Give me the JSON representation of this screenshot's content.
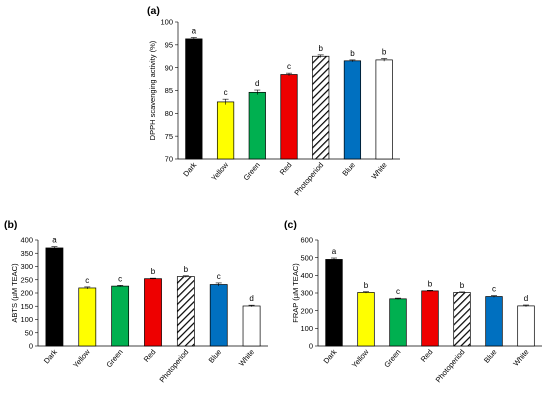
{
  "chart_data": [
    {
      "type": "bar",
      "panel_label": "(a)",
      "ylabel": "DPPH scavenging activity (%)",
      "ylim": [
        70,
        100
      ],
      "yticks": [
        70,
        75,
        80,
        85,
        90,
        95,
        100
      ],
      "categories": [
        "Dark",
        "Yellow",
        "Green",
        "Red",
        "Photoperiod",
        "Blue",
        "White"
      ],
      "values": [
        96.3,
        82.5,
        84.6,
        88.5,
        92.5,
        91.5,
        91.7
      ],
      "errors": [
        0.3,
        0.6,
        0.5,
        0.3,
        0.3,
        0.2,
        0.3
      ],
      "letters": [
        "a",
        "c",
        "d",
        "c",
        "b",
        "b",
        "b"
      ]
    },
    {
      "type": "bar",
      "panel_label": "(b)",
      "ylabel": "ABTS (µM TEAC)",
      "ylim": [
        0,
        400
      ],
      "yticks": [
        0,
        50,
        100,
        150,
        200,
        250,
        300,
        350,
        400
      ],
      "categories": [
        "Dark",
        "Yellow",
        "Green",
        "Red",
        "Photoperiod",
        "Blue",
        "White"
      ],
      "values": [
        370,
        219,
        226,
        254,
        262,
        232,
        151
      ],
      "errors": [
        5,
        4,
        3,
        2,
        3,
        6,
        3
      ],
      "letters": [
        "a",
        "c",
        "c",
        "b",
        "b",
        "c",
        "d"
      ]
    },
    {
      "type": "bar",
      "panel_label": "(c)",
      "ylabel": "FRAP (µM TEAC)",
      "ylim": [
        0,
        600
      ],
      "yticks": [
        0,
        100,
        200,
        300,
        400,
        500,
        600
      ],
      "categories": [
        "Dark",
        "Yellow",
        "Green",
        "Red",
        "Photoperiod",
        "Blue",
        "White"
      ],
      "values": [
        490,
        303,
        267,
        312,
        303,
        280,
        227
      ],
      "errors": [
        8,
        4,
        4,
        3,
        3,
        5,
        5
      ],
      "letters": [
        "a",
        "b",
        "c",
        "b",
        "b",
        "c",
        "d"
      ]
    }
  ],
  "colors": {
    "Dark": "#000000",
    "Yellow": "#ffff00",
    "Green": "#00b050",
    "Red": "#ee0000",
    "Photoperiod": "hatched",
    "Blue": "#0070c0",
    "White": "#ffffff"
  }
}
